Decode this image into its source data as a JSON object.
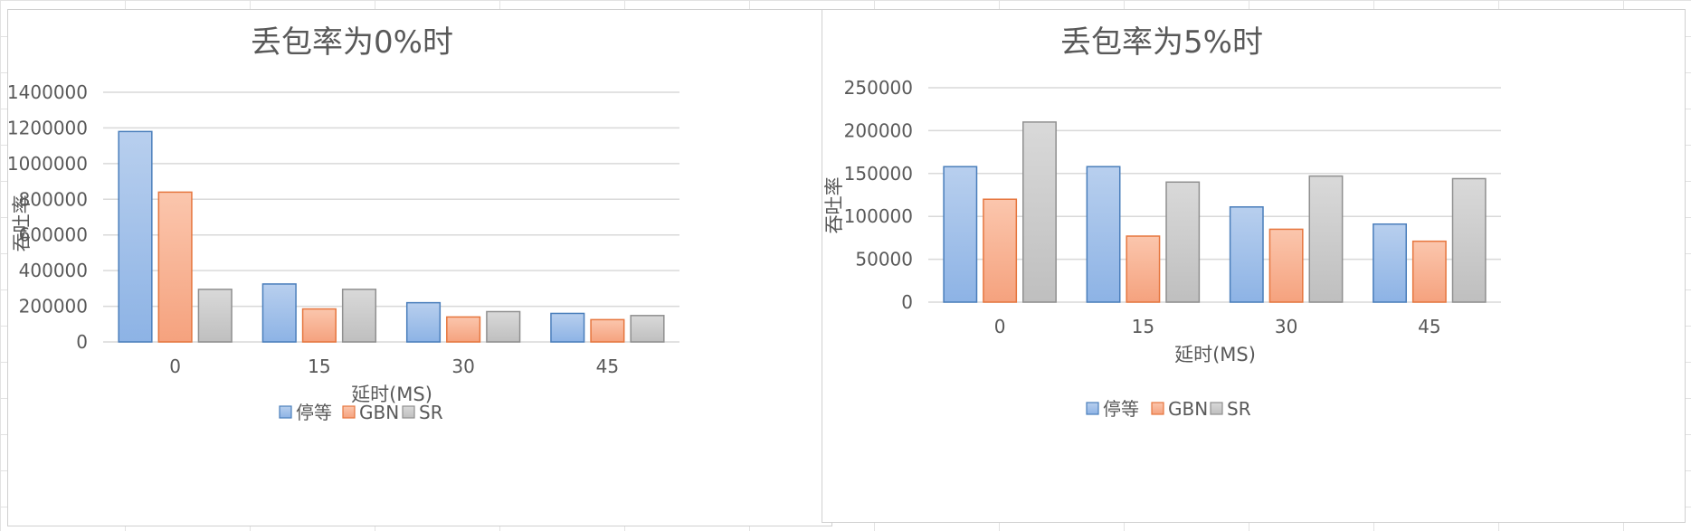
{
  "colors": {
    "series": [
      {
        "fill_top": "#b8cfee",
        "fill_bottom": "#8db3e5",
        "stroke": "#4a7ebb"
      },
      {
        "fill_top": "#fbc6ad",
        "fill_bottom": "#f5a27e",
        "stroke": "#e6763e"
      },
      {
        "fill_top": "#d9d9d9",
        "fill_bottom": "#bfbfbf",
        "stroke": "#8f8f8f"
      }
    ],
    "gridline": "#d9d9d9",
    "text": "#595959"
  },
  "chart_data": [
    {
      "type": "bar",
      "title": "丢包率为0%时",
      "xlabel": "延时(MS)",
      "ylabel": "吞吐率",
      "categories": [
        "0",
        "15",
        "30",
        "45"
      ],
      "ylim": [
        0,
        1400000
      ],
      "yticks": [
        0,
        200000,
        400000,
        600000,
        800000,
        1000000,
        1200000,
        1400000
      ],
      "grid": true,
      "legend": "bottom",
      "series": [
        {
          "name": "停等",
          "values": [
            1180000,
            325000,
            220000,
            160000
          ]
        },
        {
          "name": "GBN",
          "values": [
            840000,
            185000,
            140000,
            125000
          ]
        },
        {
          "name": "SR",
          "values": [
            295000,
            295000,
            170000,
            148000
          ]
        }
      ]
    },
    {
      "type": "bar",
      "title": "丢包率为5%时",
      "xlabel": "延时(MS)",
      "ylabel": "吞吐率",
      "categories": [
        "0",
        "15",
        "30",
        "45"
      ],
      "ylim": [
        0,
        250000
      ],
      "yticks": [
        0,
        50000,
        100000,
        150000,
        200000,
        250000
      ],
      "grid": true,
      "legend": "bottom",
      "series": [
        {
          "name": "停等",
          "values": [
            158000,
            158000,
            111000,
            91000
          ]
        },
        {
          "name": "GBN",
          "values": [
            120000,
            77000,
            85000,
            71000
          ]
        },
        {
          "name": "SR",
          "values": [
            210000,
            140000,
            147000,
            144000
          ]
        }
      ]
    }
  ]
}
